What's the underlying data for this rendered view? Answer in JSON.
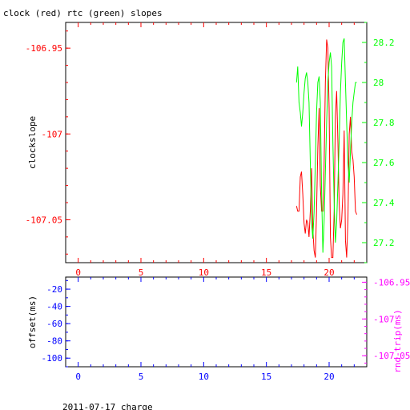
{
  "title": "clock (red) rtc (green) slopes",
  "footer": "2011-07-17 charge",
  "colors": {
    "clock": "#ff0000",
    "rtc": "#00ff00",
    "offset": "#0000ff",
    "rnd_trip": "#ff00ff",
    "frame": "#000000"
  },
  "chart_data": [
    {
      "type": "line",
      "ylabel": "clockslope",
      "y2label": "",
      "xlim": [
        -1,
        23
      ],
      "ylim": [
        -107.075,
        -106.935
      ],
      "y2lim": [
        27.1,
        28.3
      ],
      "x_ticks": [
        "0",
        "5",
        "10",
        "15",
        "20"
      ],
      "y_ticks": [
        "-106.95",
        "-107",
        "-107.05"
      ],
      "y2_ticks": [
        "28.2",
        "28",
        "27.8",
        "27.6",
        "27.4",
        "27.2"
      ],
      "grid": false,
      "series": [
        {
          "name": "clock",
          "color": "#ff0000",
          "axis": "left",
          "x": [
            17.4,
            17.5,
            17.6,
            17.7,
            17.8,
            17.9,
            18.0,
            18.1,
            18.2,
            18.3,
            18.4,
            18.5,
            18.6,
            18.7,
            18.8,
            18.9,
            19.0,
            19.1,
            19.2,
            19.3,
            19.4,
            19.5,
            19.6,
            19.7,
            19.8,
            19.9,
            20.0,
            20.1,
            20.2,
            20.3,
            20.4,
            20.5,
            20.6,
            20.7,
            20.8,
            20.9,
            21.0,
            21.1,
            21.2,
            21.3,
            21.4,
            21.5,
            21.6,
            21.7,
            21.8,
            21.9,
            22.0,
            22.1,
            22.2
          ],
          "y": [
            -107.042,
            -107.045,
            -107.045,
            -107.025,
            -107.022,
            -107.035,
            -107.052,
            -107.058,
            -107.05,
            -107.052,
            -107.06,
            -107.045,
            -107.02,
            -107.055,
            -107.068,
            -107.072,
            -107.045,
            -107.008,
            -106.985,
            -107.03,
            -107.045,
            -107.045,
            -107.02,
            -106.97,
            -106.945,
            -106.95,
            -106.985,
            -107.06,
            -107.072,
            -107.072,
            -107.045,
            -106.99,
            -106.975,
            -107.005,
            -107.04,
            -107.055,
            -107.05,
            -107.035,
            -106.998,
            -107.062,
            -107.072,
            -107.05,
            -107.0,
            -106.99,
            -107.01,
            -107.015,
            -107.025,
            -107.045,
            -107.047
          ]
        },
        {
          "name": "rtc",
          "color": "#00ff00",
          "axis": "right",
          "x": [
            17.4,
            17.5,
            17.6,
            17.7,
            17.8,
            17.9,
            18.0,
            18.1,
            18.2,
            18.3,
            18.4,
            18.5,
            18.6,
            18.7,
            18.8,
            18.9,
            19.0,
            19.1,
            19.2,
            19.3,
            19.4,
            19.5,
            19.6,
            19.7,
            19.8,
            19.9,
            20.0,
            20.1,
            20.2,
            20.3,
            20.4,
            20.5,
            20.6,
            20.7,
            20.8,
            20.9,
            21.0,
            21.1,
            21.2,
            21.3,
            21.4,
            21.5,
            21.6,
            21.7,
            21.8,
            21.9,
            22.0,
            22.1,
            22.2
          ],
          "y": [
            28.0,
            28.08,
            27.9,
            27.85,
            27.78,
            27.85,
            27.95,
            28.02,
            28.05,
            28.0,
            27.9,
            27.6,
            27.3,
            27.22,
            27.35,
            27.6,
            27.85,
            28.0,
            28.03,
            27.9,
            27.45,
            27.15,
            27.3,
            27.55,
            27.8,
            28.0,
            28.1,
            28.15,
            28.08,
            27.7,
            27.4,
            27.2,
            27.3,
            27.5,
            27.7,
            27.95,
            28.1,
            28.2,
            28.22,
            28.0,
            27.8,
            27.6,
            27.5,
            27.65,
            27.8,
            27.9,
            27.95,
            28.0,
            28.0
          ]
        }
      ]
    },
    {
      "type": "line",
      "ylabel": "offset(ms)",
      "y2label": "rnd-trip(ms)",
      "xlim": [
        -1,
        23
      ],
      "ylim": [
        -110,
        -6
      ],
      "y2lim": [
        -107.065,
        -106.943
      ],
      "x_ticks": [
        "0",
        "5",
        "10",
        "15",
        "20"
      ],
      "y_ticks": [
        "-100",
        "-80",
        "-60",
        "-40",
        "-20"
      ],
      "y2_ticks": [
        "-106.95",
        "-107",
        "-107.05"
      ],
      "grid": false,
      "series": []
    }
  ]
}
